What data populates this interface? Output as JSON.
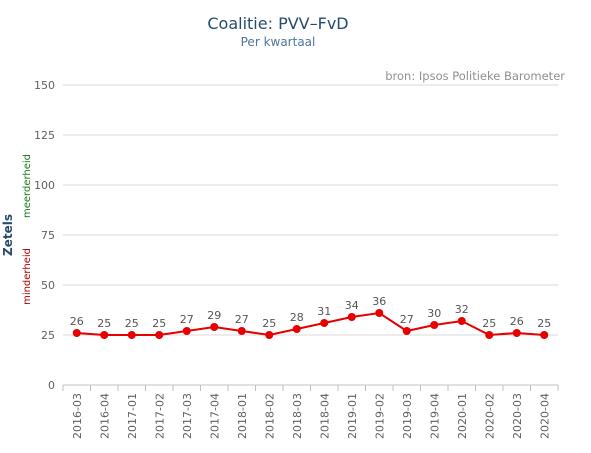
{
  "chart_data": {
    "type": "line",
    "title": "Coalitie: PVV–FvD",
    "subtitle": "Per kwartaal",
    "source": "bron: Ipsos Politieke Barometer",
    "ylabel": "Zetels",
    "ylabel_low": "minderheid",
    "ylabel_high": "meerderheid",
    "ylim": [
      0,
      150
    ],
    "yticks": [
      0,
      25,
      50,
      75,
      100,
      125,
      150
    ],
    "grid": true,
    "series_color": "#e60000",
    "categories": [
      "2016-03",
      "2016-04",
      "2017-01",
      "2017-02",
      "2017-03",
      "2017-04",
      "2018-01",
      "2018-02",
      "2018-03",
      "2018-04",
      "2019-01",
      "2019-02",
      "2019-03",
      "2019-04",
      "2020-01",
      "2020-02",
      "2020-03",
      "2020-04"
    ],
    "values": [
      26,
      25,
      25,
      25,
      27,
      29,
      27,
      25,
      28,
      31,
      34,
      36,
      27,
      30,
      32,
      25,
      26,
      25
    ]
  }
}
